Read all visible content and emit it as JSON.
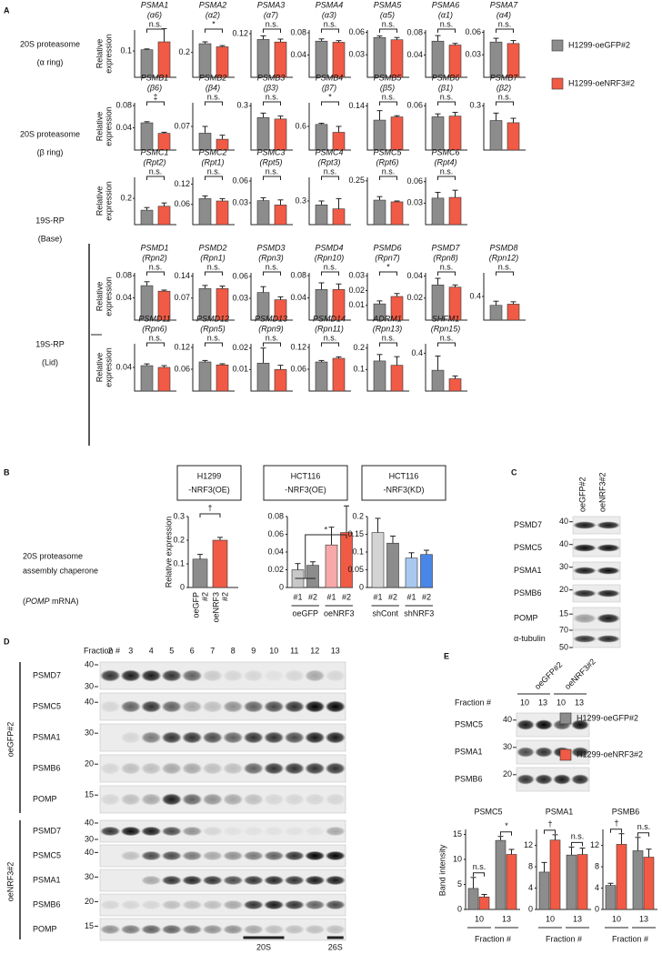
{
  "panel_labels": [
    "A",
    "B",
    "C",
    "D",
    "E"
  ],
  "legend": {
    "series": [
      {
        "name": "H1299-oeGFP#2",
        "color": "#8c8c8c"
      },
      {
        "name": "H1299-oeNRF3#2",
        "color": "#f15a45"
      }
    ]
  },
  "panel_a_rows": [
    {
      "label": [
        "20S proteasome",
        "(α ring)"
      ],
      "ylabel": [
        "Relative",
        "expression"
      ]
    },
    {
      "label": [
        "20S proteasome",
        "(β ring)"
      ],
      "ylabel": [
        "Relative",
        "expression"
      ]
    },
    {
      "label": [
        "19S-RP",
        "(Base)"
      ],
      "ylabel": [
        "Relative",
        "expression"
      ]
    },
    {
      "label": [
        "19S-RP",
        "(Lid)"
      ],
      "ylabel": [
        "Relative",
        "expression"
      ]
    },
    {
      "ylabel": [
        "Relative",
        "expression"
      ]
    }
  ],
  "chart_data": [
    {
      "type": "bar",
      "title": "PSMA1",
      "subtitle": "(α6)",
      "values": [
        0.105,
        0.135
      ],
      "errors": [
        0.003,
        0.05
      ],
      "ylim": [
        0,
        0.18
      ],
      "yticks": [
        0.1
      ],
      "annotation": "n.s."
    },
    {
      "type": "bar",
      "title": "PSMA2",
      "subtitle": "(α2)",
      "values": [
        0.27,
        0.245
      ],
      "errors": [
        0.015,
        0.01
      ],
      "ylim": [
        0,
        0.38
      ],
      "yticks": [
        0.2
      ],
      "annotation": "*"
    },
    {
      "type": "bar",
      "title": "PSMA3",
      "subtitle": "(α7)",
      "values": [
        0.104,
        0.097
      ],
      "errors": [
        0.01,
        0.008
      ],
      "ylim": [
        0,
        0.13
      ],
      "yticks": [
        0.12
      ],
      "annotation": "n.s."
    },
    {
      "type": "bar",
      "title": "PSMA4",
      "subtitle": "(α3)",
      "values": [
        0.065,
        0.063
      ],
      "errors": [
        0.004,
        0.003
      ],
      "ylim": [
        0,
        0.085
      ],
      "yticks": [
        0.04,
        0.08
      ],
      "annotation": "n.s."
    },
    {
      "type": "bar",
      "title": "PSMA5",
      "subtitle": "(α5)",
      "values": [
        0.053,
        0.05
      ],
      "errors": [
        0.002,
        0.003
      ],
      "ylim": [
        0,
        0.063
      ],
      "yticks": [
        0.03,
        0.06
      ],
      "annotation": "n.s."
    },
    {
      "type": "bar",
      "title": "PSMA6",
      "subtitle": "(α1)",
      "values": [
        0.065,
        0.058
      ],
      "errors": [
        0.01,
        0.003
      ],
      "ylim": [
        0,
        0.085
      ],
      "yticks": [
        0.04,
        0.08
      ],
      "annotation": "n.s."
    },
    {
      "type": "bar",
      "title": "PSMA7",
      "subtitle": "(α4)",
      "values": [
        0.047,
        0.045
      ],
      "errors": [
        0.005,
        0.004
      ],
      "ylim": [
        0,
        0.063
      ],
      "yticks": [
        0.03,
        0.06
      ],
      "annotation": "n.s."
    },
    {
      "type": "bar",
      "title": "PSMB1",
      "subtitle": "(β6)",
      "values": [
        0.049,
        0.03
      ],
      "errors": [
        0.002,
        0.002
      ],
      "ylim": [
        0,
        0.085
      ],
      "yticks": [
        0.04,
        0.08
      ],
      "annotation": "‡"
    },
    {
      "type": "bar",
      "title": "PSMB2",
      "subtitle": "(β4)",
      "values": [
        0.05,
        0.032
      ],
      "errors": [
        0.02,
        0.012
      ],
      "ylim": [
        0,
        0.14
      ],
      "yticks": [
        0.07
      ],
      "annotation": "n.s."
    },
    {
      "type": "bar",
      "title": "PSMB3",
      "subtitle": "(β3)",
      "values": [
        0.22,
        0.21
      ],
      "errors": [
        0.03,
        0.02
      ],
      "ylim": [
        0,
        0.32
      ],
      "yticks": [
        0.3
      ],
      "annotation": "n.s."
    },
    {
      "type": "bar",
      "title": "PSMB4",
      "subtitle": "(β7)",
      "values": [
        0.65,
        0.45
      ],
      "errors": [
        0.03,
        0.15
      ],
      "ylim": [
        0,
        1.2
      ],
      "yticks": [
        0.6
      ],
      "annotation": "*"
    },
    {
      "type": "bar",
      "title": "PSMB5",
      "subtitle": "(β5)",
      "values": [
        0.095,
        0.105
      ],
      "errors": [
        0.03,
        0.004
      ],
      "ylim": [
        0,
        0.15
      ],
      "yticks": [
        0.14
      ],
      "annotation": "n.s."
    },
    {
      "type": "bar",
      "title": "PSMB6",
      "subtitle": "(β1)",
      "values": [
        0.045,
        0.046
      ],
      "errors": [
        0.004,
        0.005
      ],
      "ylim": [
        0,
        0.064
      ],
      "yticks": [
        0.06
      ],
      "annotation": "n.s."
    },
    {
      "type": "bar",
      "title": "PSMB7",
      "subtitle": "(β2)",
      "values": [
        0.2,
        0.185
      ],
      "errors": [
        0.05,
        0.03
      ],
      "ylim": [
        0,
        0.32
      ],
      "yticks": [
        0.3
      ],
      "annotation": "n.s."
    },
    {
      "type": "bar",
      "title": "PSMC1",
      "subtitle": "(Rpt2)",
      "values": [
        0.11,
        0.14
      ],
      "errors": [
        0.02,
        0.025
      ],
      "ylim": [
        0,
        0.36
      ],
      "yticks": [
        0.2
      ],
      "annotation": "n.s."
    },
    {
      "type": "bar",
      "title": "PSMC2",
      "subtitle": "(Rpt1)",
      "values": [
        0.077,
        0.07
      ],
      "errors": [
        0.008,
        0.007
      ],
      "ylim": [
        0,
        0.14
      ],
      "yticks": [
        0.06,
        0.12
      ],
      "annotation": "n.s."
    },
    {
      "type": "bar",
      "title": "PSMC3",
      "subtitle": "(Rpt5)",
      "values": [
        0.033,
        0.027
      ],
      "errors": [
        0.004,
        0.007
      ],
      "ylim": [
        0,
        0.065
      ],
      "yticks": [
        0.03,
        0.06
      ],
      "annotation": "n.s."
    },
    {
      "type": "bar",
      "title": "PSMC4",
      "subtitle": "(Rpt3)",
      "values": [
        0.25,
        0.2
      ],
      "errors": [
        0.05,
        0.13
      ],
      "ylim": [
        0,
        0.6
      ],
      "yticks": [
        0.3
      ],
      "annotation": "n.s."
    },
    {
      "type": "bar",
      "title": "PSMC5",
      "subtitle": "(Rpt6)",
      "values": [
        0.14,
        0.13
      ],
      "errors": [
        0.02,
        0.005
      ],
      "ylim": [
        0,
        0.27
      ],
      "yticks": [
        0.25
      ],
      "annotation": "n.s."
    },
    {
      "type": "bar",
      "title": "PSMC6",
      "subtitle": "(Rpt4)",
      "values": [
        0.037,
        0.038
      ],
      "errors": [
        0.008,
        0.01
      ],
      "ylim": [
        0,
        0.066
      ],
      "yticks": [
        0.03,
        0.06
      ],
      "annotation": "n.s."
    },
    {
      "type": "bar",
      "title": "PSMD1",
      "subtitle": "(Rpn2)",
      "values": [
        0.062,
        0.052
      ],
      "errors": [
        0.007,
        0.002
      ],
      "ylim": [
        0,
        0.085
      ],
      "yticks": [
        0.04,
        0.08
      ],
      "annotation": "n.s."
    },
    {
      "type": "bar",
      "title": "PSMD2",
      "subtitle": "(Rpn1)",
      "values": [
        0.1,
        0.1
      ],
      "errors": [
        0.01,
        0.008
      ],
      "ylim": [
        0,
        0.15
      ],
      "yticks": [
        0.07,
        0.14
      ],
      "annotation": "n.s."
    },
    {
      "type": "bar",
      "title": "PSMD3",
      "subtitle": "(Rpn3)",
      "values": [
        0.038,
        0.028
      ],
      "errors": [
        0.008,
        0.004
      ],
      "ylim": [
        0,
        0.065
      ],
      "yticks": [
        0.03,
        0.06
      ],
      "annotation": "n.s."
    },
    {
      "type": "bar",
      "title": "PSMD4",
      "subtitle": "(Rpn10)",
      "values": [
        0.055,
        0.055
      ],
      "errors": [
        0.012,
        0.01
      ],
      "ylim": [
        0,
        0.085
      ],
      "yticks": [
        0.04,
        0.08
      ],
      "annotation": "n.s."
    },
    {
      "type": "bar",
      "title": "PSMD6",
      "subtitle": "(Rpn7)",
      "values": [
        0.011,
        0.016
      ],
      "errors": [
        0.002,
        0.002
      ],
      "ylim": [
        0,
        0.032
      ],
      "yticks": [
        0.01,
        0.02,
        0.03
      ],
      "annotation": "*"
    },
    {
      "type": "bar",
      "title": "PSMD7",
      "subtitle": "(Rpn8)",
      "values": [
        0.032,
        0.03
      ],
      "errors": [
        0.006,
        0.002
      ],
      "ylim": [
        0,
        0.043
      ],
      "yticks": [
        0.02,
        0.04
      ],
      "annotation": "n.s."
    },
    {
      "type": "bar",
      "title": "PSMD8",
      "subtitle": "(Rpn12)",
      "values": [
        0.25,
        0.27
      ],
      "errors": [
        0.07,
        0.04
      ],
      "ylim": [
        0,
        0.8
      ],
      "yticks": [
        0.4
      ],
      "annotation": "n.s."
    },
    {
      "type": "bar",
      "title": "PSMD11",
      "subtitle": "(Rpn6)",
      "values": [
        0.043,
        0.04
      ],
      "errors": [
        0.003,
        0.003
      ],
      "ylim": [
        0,
        0.08
      ],
      "yticks": [
        0.04
      ],
      "annotation": "n.s."
    },
    {
      "type": "bar",
      "title": "PSMD12",
      "subtitle": "(Rpn5)",
      "values": [
        0.08,
        0.072
      ],
      "errors": [
        0.004,
        0.003
      ],
      "ylim": [
        0,
        0.13
      ],
      "yticks": [
        0.06,
        0.12
      ],
      "annotation": "n.s."
    },
    {
      "type": "bar",
      "title": "PSMD13",
      "subtitle": "(Rpn9)",
      "values": [
        0.013,
        0.01
      ],
      "errors": [
        0.007,
        0.002
      ],
      "ylim": [
        0,
        0.022
      ],
      "yticks": [
        0.01,
        0.02
      ],
      "annotation": "n.s."
    },
    {
      "type": "bar",
      "title": "PSMD14",
      "subtitle": "(Rpn11)",
      "values": [
        0.08,
        0.09
      ],
      "errors": [
        0.004,
        0.004
      ],
      "ylim": [
        0,
        0.13
      ],
      "yticks": [
        0.06,
        0.12
      ],
      "annotation": "n.s."
    },
    {
      "type": "bar",
      "title": "ADRM1",
      "subtitle": "(Rpn13)",
      "values": [
        0.14,
        0.12
      ],
      "errors": [
        0.03,
        0.04
      ],
      "ylim": [
        0,
        0.22
      ],
      "yticks": [
        0.1,
        0.2
      ],
      "annotation": "n.s."
    },
    {
      "type": "bar",
      "title": "SHFM1",
      "subtitle": "(Rpn15)",
      "values": [
        0.22,
        0.13
      ],
      "errors": [
        0.15,
        0.03
      ],
      "ylim": [
        0,
        0.5
      ],
      "yticks": [
        0.4
      ],
      "annotation": "n.s."
    },
    {
      "type": "bar",
      "title": [
        "H1299",
        "-NRF3(OE)"
      ],
      "ylabel": "Relative expression",
      "categories": [
        [
          "oeGFP",
          "#2"
        ],
        [
          "oeNRF3",
          "#2"
        ]
      ],
      "values": [
        0.12,
        0.2
      ],
      "errors": [
        0.02,
        0.012
      ],
      "colors": [
        "#8c8c8c",
        "#f15a45"
      ],
      "ylim": [
        0,
        0.3
      ],
      "yticks": [
        0,
        0.1,
        0.2,
        0.3
      ],
      "annotation": "†"
    },
    {
      "type": "bar",
      "title": [
        "HCT116",
        "-NRF3(OE)"
      ],
      "categories": [
        "#1",
        "#2",
        "#1",
        "#2"
      ],
      "groups": [
        "oeGFP",
        "oeNRF3"
      ],
      "values": [
        0.02,
        0.025,
        0.048,
        0.062
      ],
      "errors": [
        0.007,
        0.004,
        0.02,
        0.03
      ],
      "colors": [
        "#c8c8c8",
        "#8c8c8c",
        "#f7a8a8",
        "#f15a45"
      ],
      "ylim": [
        0,
        0.08
      ],
      "yticks": [
        0,
        0.02,
        0.04,
        0.06,
        0.08
      ],
      "annotation": "*"
    },
    {
      "type": "bar",
      "title": [
        "HCT116",
        "-NRF3(KD)"
      ],
      "categories": [
        "#1",
        "#2",
        "#1",
        "#2"
      ],
      "groups": [
        "shCont",
        "shNRF3"
      ],
      "values": [
        0.155,
        0.125,
        0.083,
        0.093
      ],
      "errors": [
        0.04,
        0.02,
        0.015,
        0.012
      ],
      "colors": [
        "#d4d4d4",
        "#8c8c8c",
        "#a8c8f0",
        "#4a86e8"
      ],
      "ylim": [
        0,
        0.2
      ],
      "yticks": [
        0,
        0.05,
        0.1,
        0.15,
        0.2
      ]
    },
    {
      "type": "grouped-bar",
      "title": "PSMC5",
      "ylabel": "Band intensity",
      "xlabel": "Fraction #",
      "categories": [
        "10",
        "13"
      ],
      "series": [
        {
          "values": [
            4.2,
            13.8
          ],
          "errors": [
            2.2,
            0.8
          ]
        },
        {
          "values": [
            2.5,
            11.0
          ],
          "errors": [
            0.5,
            1.0
          ]
        }
      ],
      "annotations": [
        "n.s.",
        "*"
      ],
      "ylim": [
        0,
        16
      ],
      "yticks": [
        0,
        5,
        10,
        15
      ]
    },
    {
      "type": "grouped-bar",
      "title": "PSMA1",
      "xlabel": "Fraction #",
      "categories": [
        "10",
        "13"
      ],
      "series": [
        {
          "values": [
            7.0,
            10.2
          ],
          "errors": [
            1.8,
            1.5
          ]
        },
        {
          "values": [
            13.0,
            10.3
          ],
          "errors": [
            1.0,
            1.2
          ]
        }
      ],
      "annotations": [
        "†",
        "n.s."
      ],
      "ylim": [
        0,
        15
      ],
      "yticks": [
        0,
        4,
        8,
        12
      ]
    },
    {
      "type": "grouped-bar",
      "title": "PSMB6",
      "xlabel": "Fraction #",
      "categories": [
        "10",
        "13"
      ],
      "series": [
        {
          "values": [
            4.5,
            11.0
          ],
          "errors": [
            0.4,
            2.5
          ]
        },
        {
          "values": [
            12.2,
            9.8
          ],
          "errors": [
            2.0,
            1.5
          ]
        }
      ],
      "annotations": [
        "†",
        "n.s."
      ],
      "ylim": [
        0,
        15
      ],
      "yticks": [
        0,
        4,
        8,
        12
      ]
    }
  ],
  "panel_b": {
    "description": [
      "20S proteasome",
      "assembly chaperone"
    ],
    "mrna": {
      "open": "(",
      "gene": "POMP",
      "close": " mRNA)"
    }
  },
  "panel_c": {
    "columns": [
      "oeGFP#2",
      "oeNRF3#2"
    ],
    "rows": [
      {
        "label": "PSMD7",
        "markers": [
          40
        ]
      },
      {
        "label": "PSMC5",
        "markers": [
          40
        ]
      },
      {
        "label": "PSMA1",
        "markers": [
          30
        ]
      },
      {
        "label": "PSMB6",
        "markers": [
          20
        ]
      },
      {
        "label": "POMP",
        "markers": [
          15
        ]
      },
      {
        "label": "α-tubulin",
        "markers": [
          70,
          50
        ]
      }
    ]
  },
  "panel_d": {
    "fraction_label": "Fraction #",
    "fractions": [
      2,
      3,
      4,
      5,
      6,
      7,
      8,
      9,
      10,
      11,
      12,
      13
    ],
    "groups": [
      {
        "label": "oeGFP#2",
        "rows": [
          {
            "label": "PSMD7",
            "markers": [
              40,
              30
            ]
          },
          {
            "label": "PSMC5",
            "markers": [
              40
            ]
          },
          {
            "label": "PSMA1",
            "markers": [
              30
            ]
          },
          {
            "label": "PSMB6",
            "markers": [
              20
            ]
          },
          {
            "label": "POMP",
            "markers": [
              15
            ]
          }
        ]
      },
      {
        "label": "oeNRF3#2",
        "rows": [
          {
            "label": "PSMD7",
            "markers": [
              40,
              30
            ]
          },
          {
            "label": "PSMC5",
            "markers": [
              40
            ]
          },
          {
            "label": "PSMA1",
            "markers": [
              30
            ]
          },
          {
            "label": "PSMB6",
            "markers": [
              20
            ]
          },
          {
            "label": "POMP",
            "markers": [
              15
            ]
          }
        ]
      }
    ],
    "complexes": [
      "20S",
      "26S"
    ]
  },
  "panel_e": {
    "columns": [
      "oeGFP#2",
      "oeNRF3#2"
    ],
    "fraction_label": "Fraction #",
    "fractions": [
      10,
      13,
      10,
      13
    ],
    "rows": [
      {
        "label": "PSMC5",
        "markers": [
          40
        ]
      },
      {
        "label": "PSMA1",
        "markers": [
          30
        ]
      },
      {
        "label": "PSMB6",
        "markers": [
          20
        ]
      }
    ],
    "legend": {
      "series": [
        {
          "name": "H1299-oeGFP#2",
          "color": "#8c8c8c"
        },
        {
          "name": "H1299-oeNRF3#2",
          "color": "#f15a45"
        }
      ]
    }
  }
}
